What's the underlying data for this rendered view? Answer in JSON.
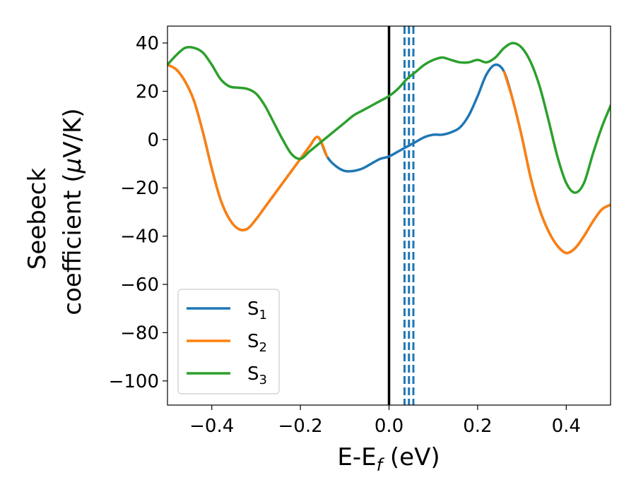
{
  "chart_data": {
    "type": "line",
    "xlabel": {
      "base": "E-E",
      "sub": "f",
      "tail": " (eV)"
    },
    "ylabel": {
      "line1": "Seebeck",
      "line2_pre": "coefficient  (",
      "mu": "μ",
      "line2_post": "V/K)"
    },
    "xlim": [
      -0.5,
      0.5
    ],
    "ylim": [
      -110,
      47
    ],
    "xticks": [
      -0.4,
      -0.2,
      0.0,
      0.2,
      0.4
    ],
    "xtick_labels": [
      "−0.4",
      "−0.2",
      "0.0",
      "0.2",
      "0.4"
    ],
    "yticks": [
      40,
      20,
      0,
      -20,
      -40,
      -60,
      -80,
      -100
    ],
    "ytick_labels": [
      "40",
      "20",
      "0",
      "−20",
      "−40",
      "−60",
      "−80",
      "−100"
    ],
    "grid": false,
    "legend_position": "lower-left",
    "vertical_lines": [
      {
        "x": 0.0,
        "style": "solid",
        "color": "#000000"
      },
      {
        "x": 0.035,
        "style": "dashed",
        "color": "#1f77b4"
      },
      {
        "x": 0.045,
        "style": "dashed",
        "color": "#1f77b4"
      },
      {
        "x": 0.055,
        "style": "dashed",
        "color": "#1f77b4"
      }
    ],
    "series": [
      {
        "name": "S",
        "sub": "1",
        "color": "#1f77b4",
        "x": [
          -0.5,
          -0.48,
          -0.46,
          -0.44,
          -0.42,
          -0.4,
          -0.38,
          -0.36,
          -0.34,
          -0.32,
          -0.3,
          -0.28,
          -0.26,
          -0.24,
          -0.22,
          -0.2,
          -0.18,
          -0.16,
          -0.14,
          -0.12,
          -0.1,
          -0.08,
          -0.06,
          -0.04,
          -0.02,
          0.0,
          0.02,
          0.04,
          0.06,
          0.08,
          0.1,
          0.12,
          0.14,
          0.16,
          0.18,
          0.2,
          0.22,
          0.24,
          0.26,
          0.28,
          0.3,
          0.32,
          0.34,
          0.36,
          0.38,
          0.4,
          0.42,
          0.44,
          0.46,
          0.48,
          0.5
        ],
        "y": [
          31,
          29,
          24,
          16,
          3,
          -12,
          -25,
          -33,
          -37,
          -37,
          -33,
          -28,
          -23,
          -18,
          -13,
          -8,
          -3,
          1,
          -7,
          -11,
          -13,
          -13,
          -12,
          -10,
          -8,
          -7,
          -5,
          -3,
          -1,
          1,
          2,
          2,
          3,
          5,
          10,
          18,
          27,
          31,
          28,
          16,
          1,
          -16,
          -29,
          -38,
          -44,
          -47,
          -45,
          -40,
          -34,
          -29,
          -27
        ]
      },
      {
        "name": "S",
        "sub": "2",
        "color": "#ff7f0e",
        "x": [
          -0.5,
          -0.48,
          -0.46,
          -0.44,
          -0.42,
          -0.4,
          -0.38,
          -0.36,
          -0.34,
          -0.32,
          -0.3,
          -0.28,
          -0.26,
          -0.24,
          -0.22,
          -0.2,
          -0.18,
          -0.16,
          -0.14,
          0.26,
          0.28,
          0.3,
          0.32,
          0.34,
          0.36,
          0.38,
          0.4,
          0.42,
          0.44,
          0.46,
          0.48,
          0.5
        ],
        "y": [
          31,
          29,
          24,
          16,
          3,
          -12,
          -25,
          -33,
          -37,
          -37,
          -33,
          -28,
          -23,
          -18,
          -13,
          -8,
          -3,
          1,
          -7,
          28,
          16,
          1,
          -16,
          -29,
          -38,
          -44,
          -47,
          -45,
          -40,
          -34,
          -29,
          -27
        ]
      },
      {
        "name": "S",
        "sub": "3",
        "color": "#2ca02c",
        "x": [
          -0.5,
          -0.48,
          -0.46,
          -0.44,
          -0.42,
          -0.4,
          -0.38,
          -0.36,
          -0.34,
          -0.32,
          -0.3,
          -0.28,
          -0.26,
          -0.24,
          -0.22,
          -0.2,
          -0.18,
          -0.16,
          -0.14,
          -0.12,
          -0.1,
          -0.08,
          -0.06,
          -0.04,
          -0.02,
          0.0,
          0.02,
          0.04,
          0.06,
          0.08,
          0.1,
          0.12,
          0.14,
          0.16,
          0.18,
          0.2,
          0.22,
          0.24,
          0.26,
          0.28,
          0.3,
          0.32,
          0.34,
          0.36,
          0.38,
          0.4,
          0.42,
          0.44,
          0.46,
          0.48,
          0.5
        ],
        "y": [
          31,
          35,
          38,
          38,
          36,
          31,
          25,
          22,
          21.5,
          21,
          19,
          14,
          7,
          0,
          -6,
          -8,
          -5,
          -2,
          1,
          4,
          7,
          10,
          12,
          14,
          16,
          18,
          21,
          25,
          28,
          31,
          33,
          34,
          33,
          32,
          32,
          33,
          32,
          34,
          38,
          40,
          38,
          32,
          22,
          8,
          -7,
          -18,
          -22,
          -18,
          -6,
          5,
          14
        ]
      }
    ]
  }
}
